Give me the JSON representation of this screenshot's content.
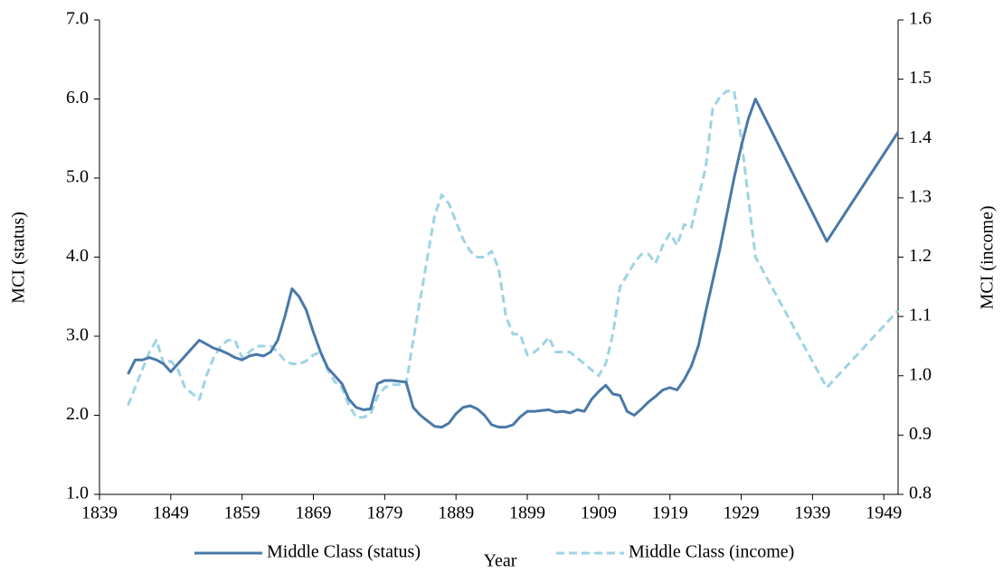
{
  "chart_data": {
    "type": "line",
    "x_label": "Year",
    "y_label": "MCI (status)",
    "y2_label": "MCI (income)",
    "x": [
      1843,
      1844,
      1845,
      1846,
      1847,
      1848,
      1849,
      1850,
      1851,
      1852,
      1853,
      1854,
      1855,
      1856,
      1857,
      1858,
      1859,
      1860,
      1861,
      1862,
      1863,
      1864,
      1865,
      1866,
      1867,
      1868,
      1869,
      1870,
      1871,
      1872,
      1873,
      1874,
      1875,
      1876,
      1877,
      1878,
      1879,
      1880,
      1881,
      1882,
      1883,
      1884,
      1885,
      1886,
      1887,
      1888,
      1889,
      1890,
      1891,
      1892,
      1893,
      1894,
      1895,
      1896,
      1897,
      1898,
      1899,
      1900,
      1901,
      1902,
      1903,
      1904,
      1905,
      1906,
      1907,
      1908,
      1909,
      1910,
      1911,
      1912,
      1913,
      1914,
      1915,
      1916,
      1917,
      1918,
      1919,
      1920,
      1921,
      1922,
      1923,
      1924,
      1925,
      1926,
      1927,
      1928,
      1929,
      1930,
      1931,
      1941,
      1951
    ],
    "series": [
      {
        "name": "Middle Class (status)",
        "color": "#4a78a8",
        "dashed": false,
        "values": [
          2.52,
          2.7,
          2.7,
          2.73,
          2.7,
          2.65,
          2.55,
          2.65,
          2.75,
          2.85,
          2.95,
          2.9,
          2.85,
          2.82,
          2.78,
          2.73,
          2.7,
          2.75,
          2.77,
          2.75,
          2.8,
          2.95,
          3.25,
          3.6,
          3.5,
          3.33,
          3.05,
          2.8,
          2.6,
          2.5,
          2.4,
          2.2,
          2.1,
          2.07,
          2.08,
          2.4,
          2.44,
          2.44,
          2.43,
          2.42,
          2.1,
          2.0,
          1.93,
          1.86,
          1.85,
          1.9,
          2.02,
          2.1,
          2.12,
          2.08,
          2.0,
          1.88,
          1.85,
          1.85,
          1.88,
          1.98,
          2.05,
          2.05,
          2.06,
          2.07,
          2.04,
          2.05,
          2.03,
          2.07,
          2.05,
          2.2,
          2.3,
          2.38,
          2.27,
          2.25,
          2.05,
          2.0,
          2.08,
          2.17,
          2.24,
          2.32,
          2.35,
          2.32,
          2.45,
          2.62,
          2.88,
          3.3,
          3.7,
          4.1,
          4.55,
          5.0,
          5.4,
          5.75,
          6.0,
          4.2,
          5.58
        ]
      },
      {
        "name": "Middle Class (income)",
        "color": "#9dd4e4",
        "dashed": true,
        "axis": "y2",
        "values": [
          0.95,
          0.98,
          1.01,
          1.04,
          1.06,
          1.02,
          1.025,
          1.01,
          0.98,
          0.97,
          0.96,
          1.0,
          1.03,
          1.05,
          1.06,
          1.06,
          1.03,
          1.04,
          1.05,
          1.05,
          1.05,
          1.04,
          1.025,
          1.02,
          1.02,
          1.025,
          1.035,
          1.04,
          1.01,
          0.99,
          0.98,
          0.95,
          0.93,
          0.93,
          0.935,
          0.965,
          0.98,
          0.985,
          0.985,
          0.985,
          1.06,
          1.13,
          1.2,
          1.27,
          1.305,
          1.29,
          1.26,
          1.23,
          1.21,
          1.2,
          1.2,
          1.21,
          1.18,
          1.1,
          1.07,
          1.07,
          1.035,
          1.04,
          1.05,
          1.065,
          1.04,
          1.04,
          1.04,
          1.03,
          1.02,
          1.01,
          1.0,
          1.02,
          1.07,
          1.15,
          1.17,
          1.19,
          1.205,
          1.205,
          1.19,
          1.22,
          1.24,
          1.22,
          1.255,
          1.25,
          1.3,
          1.35,
          1.45,
          1.47,
          1.48,
          1.48,
          1.4,
          1.3,
          1.2,
          0.98,
          1.11
        ]
      }
    ],
    "xlim": [
      1839,
      1951
    ],
    "xticks": [
      1839,
      1849,
      1859,
      1869,
      1879,
      1889,
      1899,
      1909,
      1919,
      1929,
      1939,
      1949
    ],
    "ylim": [
      1,
      7
    ],
    "yticks": [
      {
        "value": 1,
        "label": "1.0"
      },
      {
        "value": 2,
        "label": "2.0"
      },
      {
        "value": 3,
        "label": "3.0"
      },
      {
        "value": 4,
        "label": "4.0"
      },
      {
        "value": 5,
        "label": "5.0"
      },
      {
        "value": 6,
        "label": "6.0"
      },
      {
        "value": 7,
        "label": "7.0"
      }
    ],
    "y2lim": [
      0.8,
      1.6
    ],
    "y2ticks": [
      0.8,
      0.9,
      {
        "value": 1,
        "label": "1.0"
      },
      1.1,
      1.2,
      1.3,
      1.4,
      1.5,
      1.6
    ],
    "grid": false
  }
}
